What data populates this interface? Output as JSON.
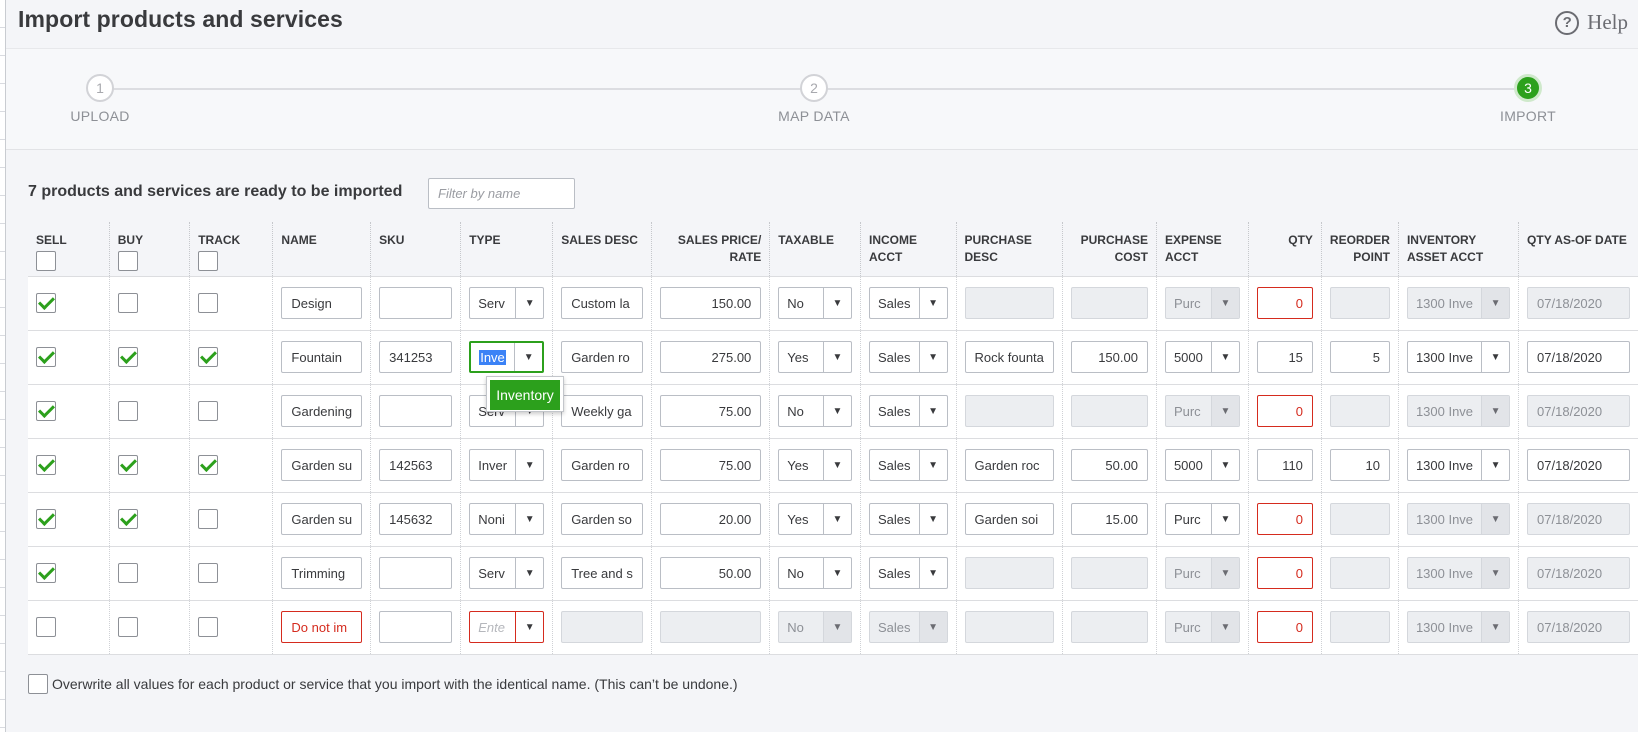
{
  "page": {
    "title": "Import products and services",
    "help_label": "Help"
  },
  "stepper": {
    "steps": [
      {
        "number": "1",
        "label": "UPLOAD",
        "state": "done"
      },
      {
        "number": "2",
        "label": "MAP DATA",
        "state": "done"
      },
      {
        "number": "3",
        "label": "IMPORT",
        "state": "active"
      }
    ]
  },
  "summary": {
    "ready_text": "7 products and services are ready to be imported",
    "filter_placeholder": "Filter by name"
  },
  "columns": {
    "sell": "SELL",
    "buy": "BUY",
    "track": "TRACK",
    "name": "NAME",
    "sku": "SKU",
    "type": "TYPE",
    "sales_desc": "SALES DESC",
    "sales_price_1": "SALES PRICE/",
    "sales_price_2": "RATE",
    "taxable": "TAXABLE",
    "income_1": "INCOME",
    "income_2": "ACCT",
    "purchase_desc_1": "PURCHASE",
    "purchase_desc_2": "DESC",
    "purchase_cost_1": "PURCHASE",
    "purchase_cost_2": "COST",
    "expense_1": "EXPENSE",
    "expense_2": "ACCT",
    "qty": "QTY",
    "reorder_1": "REORDER",
    "reorder_2": "POINT",
    "inv_asset_1": "INVENTORY",
    "inv_asset_2": "ASSET ACCT",
    "qty_date": "QTY AS-OF DATE"
  },
  "rows": [
    {
      "sell": true,
      "buy": false,
      "track": false,
      "name": "Design",
      "sku": "",
      "type": "Serv",
      "sales_desc": "Custom la",
      "price": "150.00",
      "taxable": "No",
      "income": "Sales",
      "purchase_desc": "",
      "purchase_cost": "",
      "expense": "Purc",
      "qty": "0",
      "reorder": "",
      "inv_asset": "1300 Inve",
      "date": "07/18/2020"
    },
    {
      "sell": true,
      "buy": true,
      "track": true,
      "name": "Fountain",
      "sku": "341253",
      "type": "Inve",
      "sales_desc": "Garden ro",
      "price": "275.00",
      "taxable": "Yes",
      "income": "Sales",
      "purchase_desc": "Rock founta",
      "purchase_cost": "150.00",
      "expense": "5000",
      "qty": "15",
      "reorder": "5",
      "inv_asset": "1300 Inve",
      "date": "07/18/2020"
    },
    {
      "sell": true,
      "buy": false,
      "track": false,
      "name": "Gardening",
      "sku": "",
      "type": "Serv",
      "sales_desc": "Weekly ga",
      "price": "75.00",
      "taxable": "No",
      "income": "Sales",
      "purchase_desc": "",
      "purchase_cost": "",
      "expense": "Purc",
      "qty": "0",
      "reorder": "",
      "inv_asset": "1300 Inve",
      "date": "07/18/2020"
    },
    {
      "sell": true,
      "buy": true,
      "track": true,
      "name": "Garden su",
      "sku": "142563",
      "type": "Inver",
      "sales_desc": "Garden ro",
      "price": "75.00",
      "taxable": "Yes",
      "income": "Sales",
      "purchase_desc": "Garden roc",
      "purchase_cost": "50.00",
      "expense": "5000",
      "qty": "110",
      "reorder": "10",
      "inv_asset": "1300 Inve",
      "date": "07/18/2020"
    },
    {
      "sell": true,
      "buy": true,
      "track": false,
      "name": "Garden su",
      "sku": "145632",
      "type": "Noni",
      "sales_desc": "Garden so",
      "price": "20.00",
      "taxable": "Yes",
      "income": "Sales",
      "purchase_desc": "Garden soi",
      "purchase_cost": "15.00",
      "expense": "Purc",
      "qty": "0",
      "reorder": "",
      "inv_asset": "1300 Inve",
      "date": "07/18/2020"
    },
    {
      "sell": true,
      "buy": false,
      "track": false,
      "name": "Trimming",
      "sku": "",
      "type": "Serv",
      "sales_desc": "Tree and s",
      "price": "50.00",
      "taxable": "No",
      "income": "Sales",
      "purchase_desc": "",
      "purchase_cost": "",
      "expense": "Purc",
      "qty": "0",
      "reorder": "",
      "inv_asset": "1300 Inve",
      "date": "07/18/2020"
    },
    {
      "sell": false,
      "buy": false,
      "track": false,
      "name": "Do not im",
      "sku": "",
      "type": "Ente",
      "sales_desc": "",
      "price": "",
      "taxable": "No",
      "income": "Sales",
      "purchase_desc": "",
      "purchase_cost": "",
      "expense": "Purc",
      "qty": "0",
      "reorder": "",
      "inv_asset": "1300 Inve",
      "date": "07/18/2020"
    }
  ],
  "type_dropdown": {
    "option": "Inventory"
  },
  "overwrite_label": "Overwrite all values for each product or service that you import with the identical name. (This can’t be undone.)",
  "colors": {
    "accent_green": "#2ca01c",
    "error_red": "#d52b1e",
    "selection_blue": "#3b82f6"
  }
}
